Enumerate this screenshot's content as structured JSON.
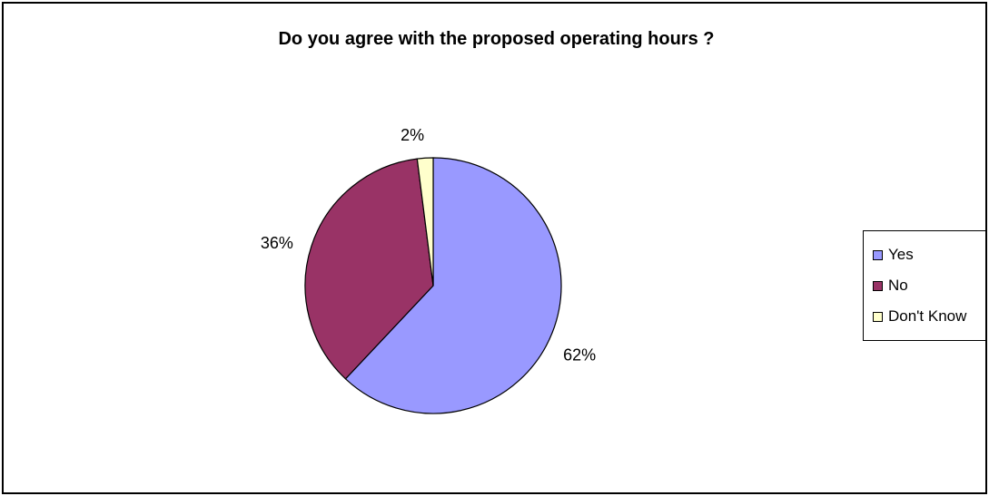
{
  "chart_data": {
    "type": "pie",
    "title": "Do you agree with the proposed operating hours ?",
    "categories": [
      "Yes",
      "No",
      "Don't Know"
    ],
    "values": [
      62,
      36,
      2
    ],
    "data_labels": [
      "62%",
      "36%",
      "2%"
    ],
    "colors": [
      "#9999FF",
      "#993366",
      "#FFFFCC"
    ],
    "legend_position": "right"
  },
  "legend": {
    "items": [
      {
        "label": "Yes",
        "color": "#9999FF"
      },
      {
        "label": "No",
        "color": "#993366"
      },
      {
        "label": "Don't Know",
        "color": "#FFFFCC"
      }
    ]
  }
}
